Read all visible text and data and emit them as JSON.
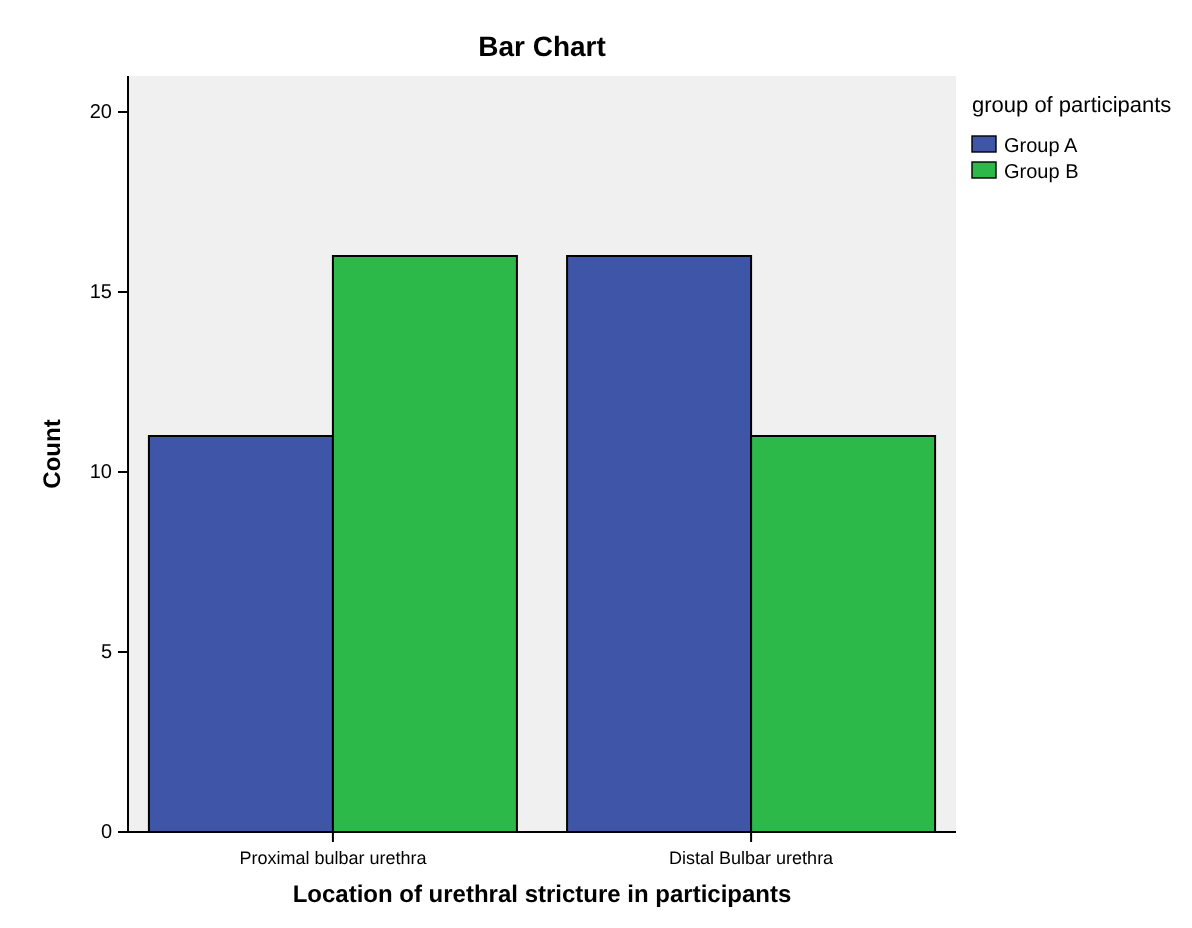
{
  "chart_data": {
    "type": "bar",
    "title": "Bar Chart",
    "xlabel": "Location of urethral stricture in participants",
    "ylabel": "Count",
    "legend_title": "group of participants",
    "categories": [
      "Proximal bulbar urethra",
      "Distal Bulbar urethra"
    ],
    "series": [
      {
        "name": "Group A",
        "color": "#3f56a8",
        "values": [
          11,
          16
        ]
      },
      {
        "name": "Group B",
        "color": "#2db84a",
        "values": [
          16,
          11
        ]
      }
    ],
    "ylim": [
      0,
      21
    ],
    "yticks": [
      0,
      5,
      10,
      15,
      20
    ],
    "grid": false,
    "legend": "top right"
  }
}
